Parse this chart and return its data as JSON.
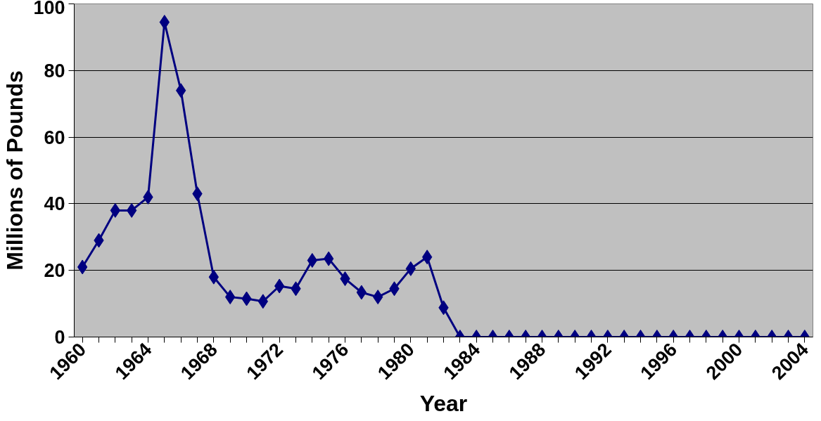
{
  "chart_data": {
    "type": "line",
    "xlabel": "Year",
    "ylabel": "Millions of Pounds",
    "categories": [
      "1960",
      null,
      null,
      null,
      "1964",
      null,
      null,
      null,
      "1968",
      null,
      null,
      null,
      "1972",
      null,
      null,
      null,
      "1976",
      null,
      null,
      null,
      "1980",
      null,
      null,
      null,
      "1984",
      null,
      null,
      null,
      "1988",
      null,
      null,
      null,
      "1992",
      null,
      null,
      null,
      "1996",
      null,
      null,
      null,
      "2000",
      null,
      null,
      null,
      "2004"
    ],
    "series": [
      {
        "color": "#000080",
        "values": [
          21,
          29,
          38,
          38,
          42,
          94.5,
          74,
          43,
          18,
          12,
          11.5,
          10.7,
          15.3,
          14.5,
          23,
          23.5,
          17.5,
          13.4,
          12,
          14.5,
          20.5,
          24,
          8.8,
          0,
          0,
          0,
          0,
          0,
          0,
          0,
          0,
          0,
          0,
          0,
          0,
          0,
          0,
          0,
          0,
          0,
          0,
          0,
          0,
          0,
          0
        ]
      }
    ],
    "ylim": [
      0,
      100
    ],
    "yticks": [
      0,
      20,
      40,
      60,
      80,
      100
    ],
    "grid": "y",
    "marker": "diamond",
    "line_style": "solid"
  }
}
